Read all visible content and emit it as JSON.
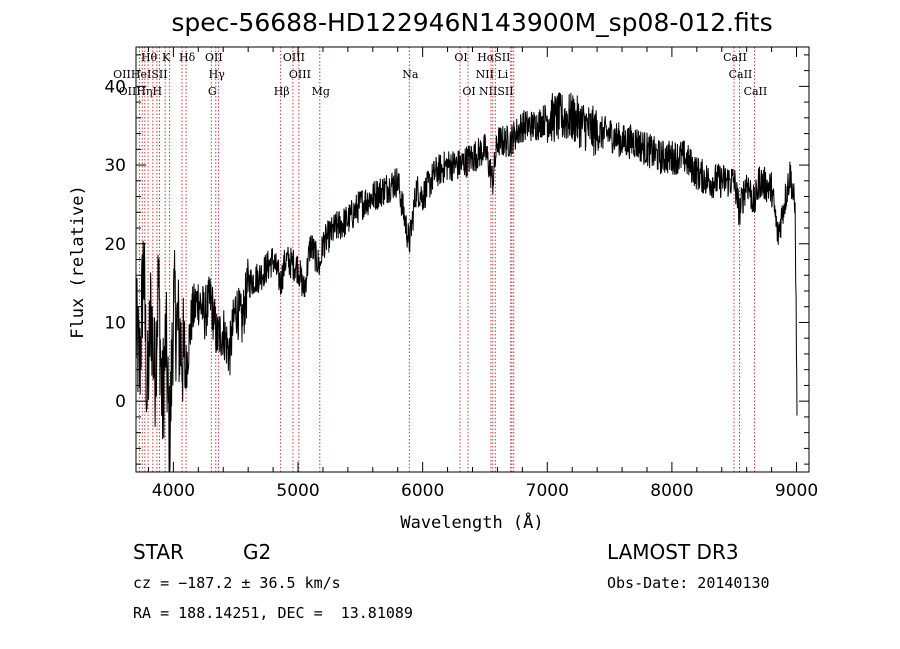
{
  "chart_data": {
    "type": "line",
    "title": "spec-56688-HD122946N143900M_sp08-012.fits",
    "xlabel": "Wavelength (Å)",
    "ylabel": "Flux (relative)",
    "xlim": [
      3700,
      9100
    ],
    "ylim": [
      -9,
      45
    ],
    "xticks": [
      4000,
      5000,
      6000,
      7000,
      8000,
      9000
    ],
    "yticks": [
      0,
      10,
      20,
      30,
      40
    ],
    "xtick_labels": [
      "4000",
      "5000",
      "6000",
      "7000",
      "8000",
      "9000"
    ],
    "ytick_labels": [
      "0",
      "10",
      "20",
      "30",
      "40"
    ],
    "grid": false,
    "series": [
      {
        "name": "spectrum",
        "anchors": [
          [
            3700,
            9
          ],
          [
            3730,
            4
          ],
          [
            3760,
            18
          ],
          [
            3790,
            0
          ],
          [
            3820,
            12
          ],
          [
            3850,
            3
          ],
          [
            3880,
            15
          ],
          [
            3910,
            -1
          ],
          [
            3940,
            8
          ],
          [
            3970,
            -6
          ],
          [
            4000,
            12
          ],
          [
            4050,
            8
          ],
          [
            4100,
            4
          ],
          [
            4150,
            11
          ],
          [
            4200,
            13
          ],
          [
            4250,
            11
          ],
          [
            4300,
            13
          ],
          [
            4350,
            8
          ],
          [
            4400,
            9
          ],
          [
            4450,
            6
          ],
          [
            4500,
            12
          ],
          [
            4550,
            10
          ],
          [
            4600,
            15
          ],
          [
            4700,
            16
          ],
          [
            4800,
            18
          ],
          [
            4861,
            15
          ],
          [
            4900,
            18
          ],
          [
            5000,
            17
          ],
          [
            5050,
            14
          ],
          [
            5100,
            20
          ],
          [
            5175,
            17
          ],
          [
            5200,
            20
          ],
          [
            5300,
            22
          ],
          [
            5400,
            23
          ],
          [
            5500,
            25
          ],
          [
            5600,
            26
          ],
          [
            5700,
            27
          ],
          [
            5800,
            28
          ],
          [
            5893,
            20
          ],
          [
            5950,
            27
          ],
          [
            6000,
            26
          ],
          [
            6100,
            29
          ],
          [
            6200,
            30
          ],
          [
            6300,
            30
          ],
          [
            6400,
            31
          ],
          [
            6500,
            32
          ],
          [
            6563,
            28
          ],
          [
            6600,
            33
          ],
          [
            6700,
            33
          ],
          [
            6800,
            35
          ],
          [
            6900,
            35
          ],
          [
            7000,
            36
          ],
          [
            7100,
            36
          ],
          [
            7200,
            36
          ],
          [
            7300,
            35
          ],
          [
            7400,
            34
          ],
          [
            7500,
            34
          ],
          [
            7600,
            33
          ],
          [
            7700,
            33
          ],
          [
            7800,
            32
          ],
          [
            7900,
            31
          ],
          [
            8000,
            31
          ],
          [
            8100,
            31
          ],
          [
            8200,
            29
          ],
          [
            8300,
            28
          ],
          [
            8400,
            28
          ],
          [
            8500,
            28
          ],
          [
            8542,
            24
          ],
          [
            8600,
            28
          ],
          [
            8662,
            25
          ],
          [
            8700,
            28
          ],
          [
            8800,
            27
          ],
          [
            8850,
            21
          ],
          [
            8900,
            25
          ],
          [
            8950,
            29
          ],
          [
            8990,
            24
          ],
          [
            9000,
            4
          ],
          [
            9005,
            -1
          ]
        ]
      }
    ],
    "spectral_lines": [
      {
        "label": "Hθ",
        "wl": 3797,
        "row": 1
      },
      {
        "label": "K",
        "wl": 3934,
        "row": 1
      },
      {
        "label": "Hδ",
        "wl": 4102,
        "row": 1
      },
      {
        "label": "OII",
        "wl": 4317,
        "row": 1
      },
      {
        "label": "OIII",
        "wl": 4959,
        "row": 1
      },
      {
        "label": "OI",
        "wl": 6300,
        "row": 1
      },
      {
        "label": "HαSII",
        "wl": 6563,
        "row": 1
      },
      {
        "label": "CaII",
        "wl": 8498,
        "row": 1
      },
      {
        "label": "OIIHeISII",
        "wl": 3727,
        "row": 2
      },
      {
        "label": "Hγ",
        "wl": 4340,
        "row": 2
      },
      {
        "label": "OIII",
        "wl": 5007,
        "row": 2
      },
      {
        "label": "Na",
        "wl": 5893,
        "row": 2
      },
      {
        "label": "NII Li",
        "wl": 6548,
        "row": 2
      },
      {
        "label": "CaII",
        "wl": 8542,
        "row": 2
      },
      {
        "label": "OIIHηH",
        "wl": 3727,
        "row": 3
      },
      {
        "label": "G",
        "wl": 4304,
        "row": 3
      },
      {
        "label": "Hβ",
        "wl": 4861,
        "row": 3
      },
      {
        "label": "Mg",
        "wl": 5175,
        "row": 3
      },
      {
        "label": "OI",
        "wl": 6364,
        "row": 3
      },
      {
        "label": "NIISII",
        "wl": 6583,
        "row": 3
      },
      {
        "label": "CaII",
        "wl": 8662,
        "row": 3
      }
    ],
    "line_markers_wl": [
      3727,
      3750,
      3771,
      3797,
      3835,
      3868,
      3889,
      3934,
      3970,
      4069,
      4102,
      4304,
      4340,
      4363,
      4861,
      4959,
      5007,
      5175,
      5893,
      6300,
      6364,
      6548,
      6563,
      6583,
      6707,
      6716,
      6731,
      8498,
      8542,
      8662
    ]
  },
  "info": {
    "object_class": "STAR",
    "subclass": "G2",
    "survey": "LAMOST DR3",
    "cz": "cz = −187.2 ± 36.5 km/s",
    "obs_date": "Obs-Date: 20140130",
    "coords": "RA = 188.14251, DEC =  13.81089"
  },
  "colors": {
    "line": "#000000",
    "marker": "#cc2222",
    "axis": "#000000"
  }
}
